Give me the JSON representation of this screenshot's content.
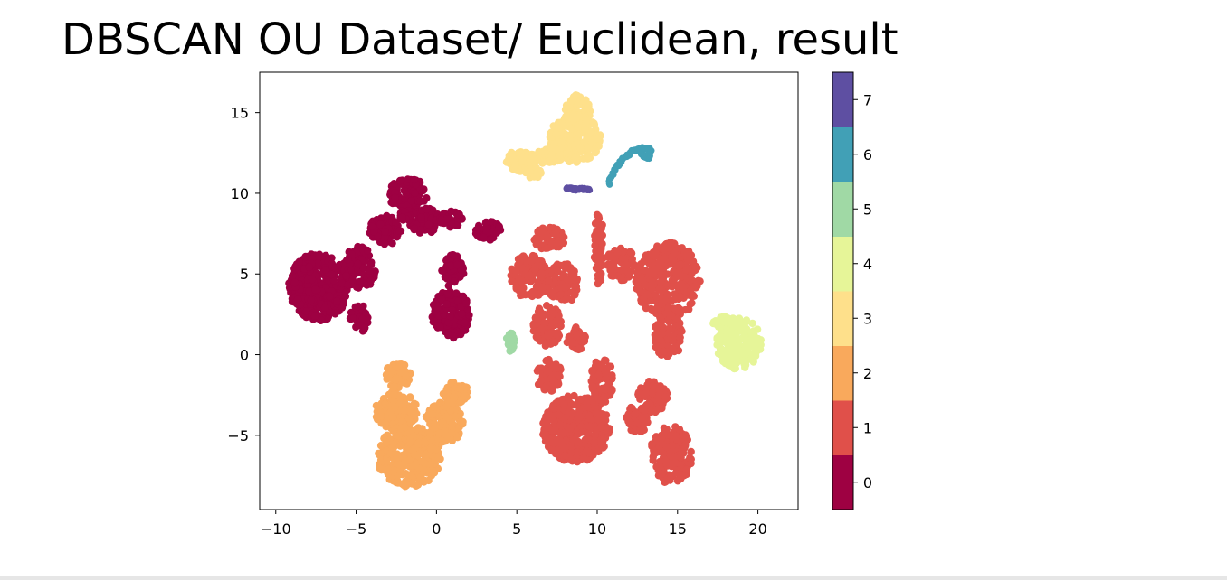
{
  "chart_data": {
    "type": "scatter",
    "title": "DBSCAN OU Dataset/ Euclidean, result",
    "xlabel": "",
    "ylabel": "",
    "xlim": [
      -11,
      22.5
    ],
    "ylim": [
      -9.6,
      17.5
    ],
    "xticks": [
      -10,
      -5,
      0,
      5,
      10,
      15,
      20
    ],
    "yticks": [
      -5,
      0,
      5,
      10,
      15
    ],
    "grid": false,
    "colorbar": {
      "label": "",
      "ticks": [
        0,
        1,
        2,
        3,
        4,
        5,
        6,
        7
      ],
      "colors": [
        "#9e0142",
        "#e0504a",
        "#f9a95c",
        "#fee08b",
        "#e6f598",
        "#a0d9a5",
        "#41a0b6",
        "#5e4fa2"
      ]
    },
    "clusters": [
      {
        "label": 0,
        "color": "#9e0142",
        "blobs": [
          {
            "cx": -7.3,
            "cy": 4.2,
            "rx": 1.9,
            "ry": 2.1,
            "n": 380
          },
          {
            "cx": -4.8,
            "cy": 5.3,
            "rx": 1.0,
            "ry": 1.4,
            "n": 90
          },
          {
            "cx": -4.8,
            "cy": 2.2,
            "rx": 0.6,
            "ry": 0.9,
            "n": 40
          },
          {
            "cx": -3.2,
            "cy": 7.7,
            "rx": 1.0,
            "ry": 0.9,
            "n": 90
          },
          {
            "cx": -1.8,
            "cy": 10.0,
            "rx": 1.3,
            "ry": 0.9,
            "n": 110
          },
          {
            "cx": -0.7,
            "cy": 8.3,
            "rx": 1.0,
            "ry": 0.8,
            "n": 80
          },
          {
            "cx": 0.9,
            "cy": 8.4,
            "rx": 0.7,
            "ry": 0.5,
            "n": 40
          },
          {
            "cx": 1.0,
            "cy": 5.2,
            "rx": 0.7,
            "ry": 1.0,
            "n": 70
          },
          {
            "cx": 0.9,
            "cy": 2.5,
            "rx": 1.2,
            "ry": 1.5,
            "n": 150
          },
          {
            "cx": 3.2,
            "cy": 7.7,
            "rx": 0.8,
            "ry": 0.6,
            "n": 55
          },
          {
            "cx": -2.0,
            "cy": 8.6,
            "rx": 0.4,
            "ry": 0.4,
            "n": 20
          }
        ]
      },
      {
        "label": 1,
        "color": "#e0504a",
        "blobs": [
          {
            "cx": 7.0,
            "cy": 7.2,
            "rx": 1.0,
            "ry": 0.7,
            "n": 70
          },
          {
            "cx": 5.8,
            "cy": 4.8,
            "rx": 1.2,
            "ry": 1.4,
            "n": 120
          },
          {
            "cx": 7.8,
            "cy": 4.4,
            "rx": 1.0,
            "ry": 1.3,
            "n": 100
          },
          {
            "cx": 6.9,
            "cy": 1.8,
            "rx": 0.9,
            "ry": 1.3,
            "n": 100
          },
          {
            "cx": 8.7,
            "cy": 1.0,
            "rx": 0.6,
            "ry": 0.8,
            "n": 45
          },
          {
            "cx": 7.0,
            "cy": -1.3,
            "rx": 0.8,
            "ry": 1.0,
            "n": 60
          },
          {
            "cx": 8.7,
            "cy": -4.6,
            "rx": 2.1,
            "ry": 2.1,
            "n": 380
          },
          {
            "cx": 10.3,
            "cy": -1.6,
            "rx": 0.7,
            "ry": 1.4,
            "n": 90
          },
          {
            "cx": 10.1,
            "cy": 6.5,
            "rx": 0.3,
            "ry": 2.3,
            "n": 60
          },
          {
            "cx": 11.5,
            "cy": 5.6,
            "rx": 1.0,
            "ry": 1.0,
            "n": 70
          },
          {
            "cx": 14.4,
            "cy": 4.6,
            "rx": 2.0,
            "ry": 2.4,
            "n": 340
          },
          {
            "cx": 14.4,
            "cy": 1.2,
            "rx": 0.9,
            "ry": 1.4,
            "n": 100
          },
          {
            "cx": 13.4,
            "cy": -2.6,
            "rx": 1.0,
            "ry": 1.0,
            "n": 80
          },
          {
            "cx": 14.6,
            "cy": -6.2,
            "rx": 1.3,
            "ry": 1.8,
            "n": 170
          },
          {
            "cx": 12.5,
            "cy": -4.0,
            "rx": 0.7,
            "ry": 0.9,
            "n": 60
          }
        ]
      },
      {
        "label": 2,
        "color": "#f9a95c",
        "blobs": [
          {
            "cx": -2.4,
            "cy": -1.3,
            "rx": 0.8,
            "ry": 0.8,
            "n": 60
          },
          {
            "cx": -2.5,
            "cy": -3.5,
            "rx": 1.3,
            "ry": 1.2,
            "n": 120
          },
          {
            "cx": -1.7,
            "cy": -6.3,
            "rx": 2.0,
            "ry": 1.9,
            "n": 320
          },
          {
            "cx": 0.5,
            "cy": -4.2,
            "rx": 1.2,
            "ry": 1.3,
            "n": 130
          },
          {
            "cx": 1.2,
            "cy": -2.4,
            "rx": 0.8,
            "ry": 0.7,
            "n": 50
          }
        ]
      },
      {
        "label": 3,
        "color": "#fee08b",
        "blobs": [
          {
            "cx": 8.8,
            "cy": 15.1,
            "rx": 0.8,
            "ry": 1.0,
            "n": 80
          },
          {
            "cx": 8.6,
            "cy": 13.4,
            "rx": 1.6,
            "ry": 1.5,
            "n": 220
          },
          {
            "cx": 7.0,
            "cy": 12.3,
            "rx": 0.8,
            "ry": 0.5,
            "n": 50
          },
          {
            "cx": 5.3,
            "cy": 12.0,
            "rx": 1.0,
            "ry": 0.7,
            "n": 80
          },
          {
            "cx": 6.0,
            "cy": 11.3,
            "rx": 0.5,
            "ry": 0.4,
            "n": 25
          }
        ]
      },
      {
        "label": 4,
        "color": "#e6f598",
        "blobs": [
          {
            "cx": 18.8,
            "cy": 0.7,
            "rx": 1.4,
            "ry": 1.6,
            "n": 200
          },
          {
            "cx": 17.8,
            "cy": 2.0,
            "rx": 0.6,
            "ry": 0.4,
            "n": 30
          }
        ]
      },
      {
        "label": 5,
        "color": "#a0d9a5",
        "blobs": [
          {
            "cx": 4.6,
            "cy": 0.8,
            "rx": 0.25,
            "ry": 0.6,
            "n": 25
          }
        ]
      },
      {
        "label": 6,
        "color": "#41a0b6",
        "blobs": [],
        "path": [
          [
            10.7,
            10.6
          ],
          [
            11.1,
            11.5
          ],
          [
            11.6,
            12.1
          ],
          [
            12.2,
            12.6
          ],
          [
            12.8,
            12.8
          ],
          [
            13.3,
            12.7
          ],
          [
            13.2,
            12.2
          ],
          [
            12.8,
            12.4
          ]
        ]
      },
      {
        "label": 7,
        "color": "#5e4fa2",
        "blobs": [],
        "path": [
          [
            8.1,
            10.3
          ],
          [
            8.6,
            10.25
          ],
          [
            9.1,
            10.25
          ],
          [
            9.5,
            10.25
          ]
        ]
      }
    ]
  }
}
